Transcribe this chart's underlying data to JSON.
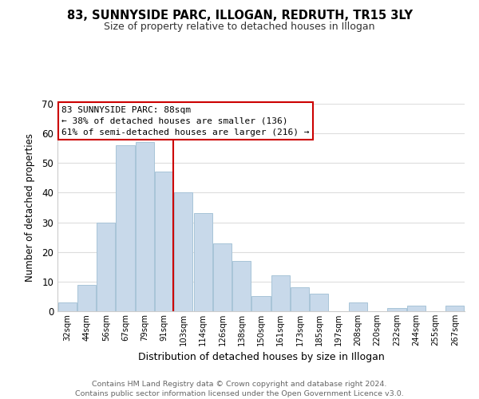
{
  "title": "83, SUNNYSIDE PARC, ILLOGAN, REDRUTH, TR15 3LY",
  "subtitle": "Size of property relative to detached houses in Illogan",
  "xlabel": "Distribution of detached houses by size in Illogan",
  "ylabel": "Number of detached properties",
  "bar_labels": [
    "32sqm",
    "44sqm",
    "56sqm",
    "67sqm",
    "79sqm",
    "91sqm",
    "103sqm",
    "114sqm",
    "126sqm",
    "138sqm",
    "150sqm",
    "161sqm",
    "173sqm",
    "185sqm",
    "197sqm",
    "208sqm",
    "220sqm",
    "232sqm",
    "244sqm",
    "255sqm",
    "267sqm"
  ],
  "bar_heights": [
    3,
    9,
    30,
    56,
    57,
    47,
    40,
    33,
    23,
    17,
    5,
    12,
    8,
    6,
    0,
    3,
    0,
    1,
    2,
    0,
    2
  ],
  "bar_color": "#c8d9ea",
  "bar_edge_color": "#a8c4d8",
  "highlight_bar_index": 5,
  "highlight_line_color": "#cc0000",
  "ylim": [
    0,
    70
  ],
  "yticks": [
    0,
    10,
    20,
    30,
    40,
    50,
    60,
    70
  ],
  "annotation_lines": [
    "83 SUNNYSIDE PARC: 88sqm",
    "← 38% of detached houses are smaller (136)",
    "61% of semi-detached houses are larger (216) →"
  ],
  "footer_lines": [
    "Contains HM Land Registry data © Crown copyright and database right 2024.",
    "Contains public sector information licensed under the Open Government Licence v3.0."
  ],
  "background_color": "#ffffff",
  "grid_color": "#dddddd"
}
